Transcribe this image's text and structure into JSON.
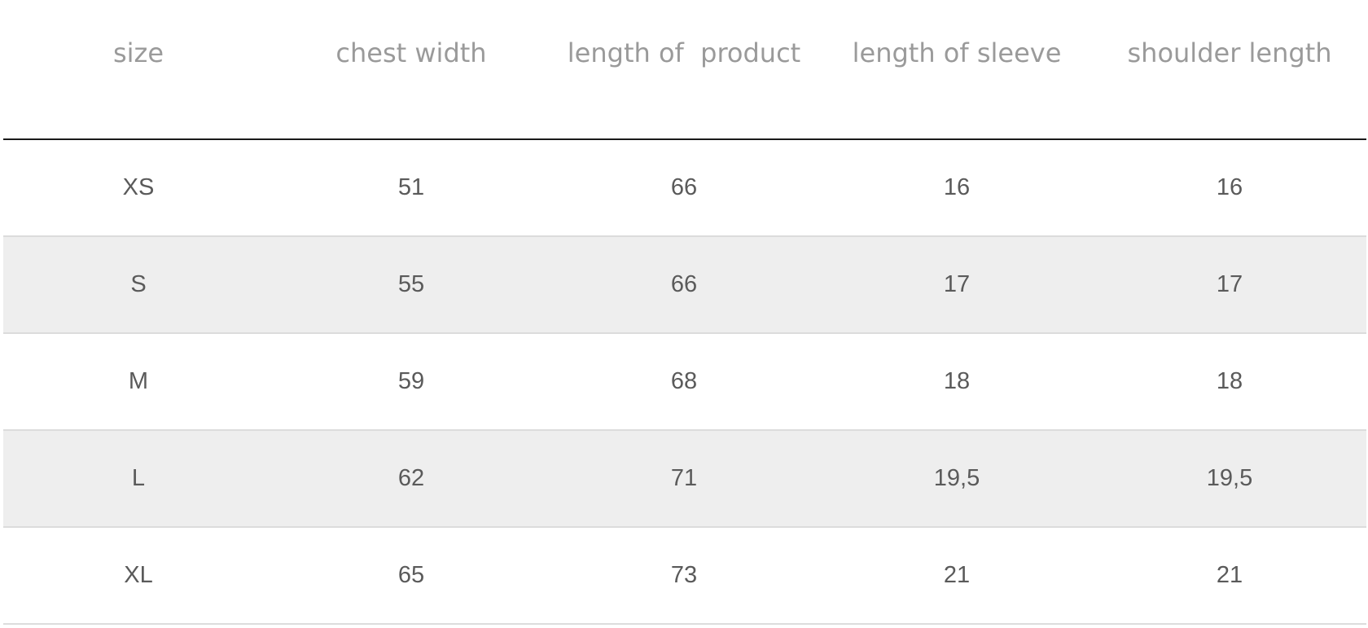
{
  "table": {
    "headers": [
      "size",
      "chest width",
      "length of  product",
      "length of sleeve",
      "shoulder length"
    ],
    "rows": [
      [
        "XS",
        "51",
        "66",
        "16",
        "16"
      ],
      [
        "S",
        "55",
        "66",
        "17",
        "17"
      ],
      [
        "M",
        "59",
        "68",
        "18",
        "18"
      ],
      [
        "L",
        "62",
        "71",
        "19,5",
        "19,5"
      ],
      [
        "XL",
        "65",
        "73",
        "21",
        "21"
      ]
    ]
  },
  "colors": {
    "header_text": "#9a9a9a",
    "cell_text": "#5a5a5a",
    "header_rule": "#1a1a1a",
    "row_divider": "#dcdcdc",
    "shaded_row": "#eeeeee"
  }
}
